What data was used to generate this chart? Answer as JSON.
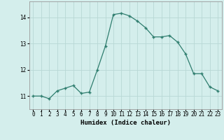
{
  "x": [
    0,
    1,
    2,
    3,
    4,
    5,
    6,
    7,
    8,
    9,
    10,
    11,
    12,
    13,
    14,
    15,
    16,
    17,
    18,
    19,
    20,
    21,
    22,
    23
  ],
  "y": [
    11.0,
    11.0,
    10.9,
    11.2,
    11.3,
    11.4,
    11.1,
    11.15,
    12.0,
    12.9,
    14.1,
    14.15,
    14.05,
    13.85,
    13.6,
    13.25,
    13.25,
    13.3,
    13.05,
    12.6,
    11.85,
    11.85,
    11.35,
    11.2
  ],
  "line_color": "#2e7d6e",
  "marker_color": "#2e7d6e",
  "bg_color": "#d4eeec",
  "grid_color": "#b8d8d5",
  "xlabel": "Humidex (Indice chaleur)",
  "ylim": [
    10.5,
    14.6
  ],
  "xlim": [
    -0.5,
    23.5
  ],
  "yticks": [
    11,
    12,
    13,
    14
  ],
  "xtick_labels": [
    "0",
    "1",
    "2",
    "3",
    "4",
    "5",
    "6",
    "7",
    "8",
    "9",
    "10",
    "11",
    "12",
    "13",
    "14",
    "15",
    "16",
    "17",
    "18",
    "19",
    "20",
    "21",
    "22",
    "23"
  ],
  "xlabel_fontsize": 6.5,
  "tick_fontsize": 5.5
}
